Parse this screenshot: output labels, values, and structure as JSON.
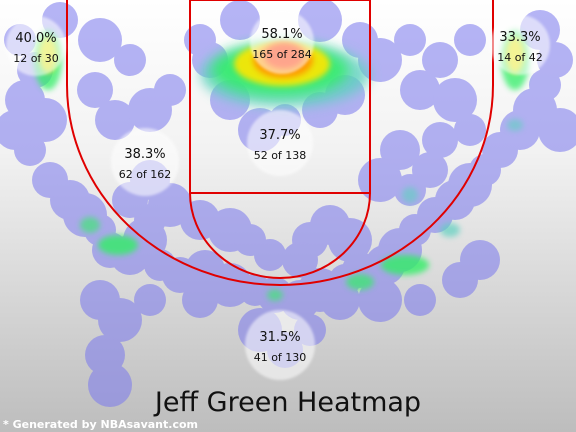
{
  "chart_data": {
    "type": "heatmap",
    "title": "Jeff Green Heatmap",
    "credit": "* Generated by NBAsavant.com",
    "zones": [
      {
        "name": "left-corner-three",
        "pct": "40.0%",
        "made_att": "12 of 30",
        "made": 12,
        "attempts": 30
      },
      {
        "name": "restricted-area",
        "pct": "58.1%",
        "made_att": "165 of 284",
        "made": 165,
        "attempts": 284
      },
      {
        "name": "right-corner-three",
        "pct": "33.3%",
        "made_att": "14 of 42",
        "made": 14,
        "attempts": 42
      },
      {
        "name": "left-midrange",
        "pct": "38.3%",
        "made_att": "62 of 162",
        "made": 62,
        "attempts": 162
      },
      {
        "name": "paint-non-ra",
        "pct": "37.7%",
        "made_att": "52 of 138",
        "made": 52,
        "attempts": 138
      },
      {
        "name": "above-break-three",
        "pct": "31.5%",
        "made_att": "41 of 130",
        "made": 41,
        "attempts": 130
      }
    ],
    "colors": {
      "court_lines": "#e00000",
      "shot_glow": "#7a78ee",
      "hot": "#ff3300",
      "warm": "#ffe600",
      "mid": "#33ee66",
      "bubble": "#ffffff"
    }
  }
}
